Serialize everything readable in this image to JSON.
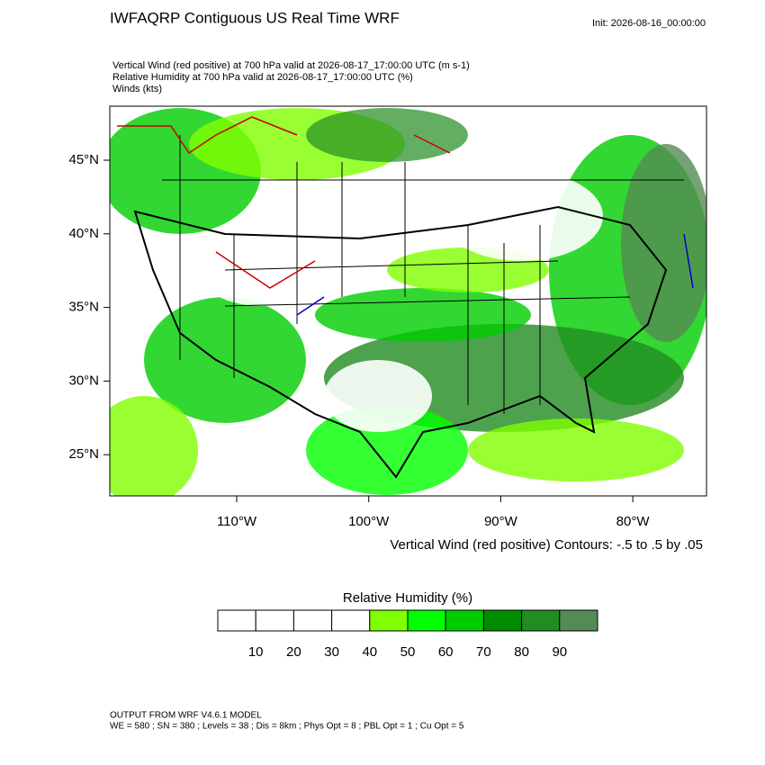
{
  "header": {
    "title": "IWFAQRP Contiguous US Real Time WRF",
    "init": "Init: 2026-08-16_00:00:00"
  },
  "fields": [
    "Vertical Wind (red positive) at 700 hPa valid at 2026-08-17_17:00:00 UTC   (m s-1)",
    "Relative Humidity at 700 hPa valid at 2026-08-17_17:00:00 UTC   (%)",
    "Winds   (kts)"
  ],
  "map": {
    "lon_ticks": [
      {
        "value": -110,
        "label": "110°W"
      },
      {
        "value": -100,
        "label": "100°W"
      },
      {
        "value": -90,
        "label": "90°W"
      },
      {
        "value": -80,
        "label": "80°W"
      }
    ],
    "lat_ticks": [
      {
        "value": 45,
        "label": "45°N"
      },
      {
        "value": 40,
        "label": "40°N"
      },
      {
        "value": 35,
        "label": "35°N"
      },
      {
        "value": 30,
        "label": "30°N"
      },
      {
        "value": 25,
        "label": "25°N"
      }
    ],
    "contour_note": "Vertical Wind (red positive) Contours: -.5 to .5 by .05"
  },
  "colorbar": {
    "title": "Relative Humidity  (%)",
    "colors": [
      "#ffffff",
      "#ffffff",
      "#ffffff",
      "#ffffff",
      "#7fff00",
      "#00ff00",
      "#00cd00",
      "#008b00",
      "#228b22",
      "#548b54"
    ],
    "labels": [
      10,
      20,
      30,
      40,
      50,
      60,
      70,
      80,
      90
    ]
  },
  "footer": {
    "model": "OUTPUT FROM WRF V4.6.1 MODEL",
    "settings": "WE = 580 ; SN = 380 ; Levels = 38 ; Dis = 8km ; Phys Opt = 8 ; PBL Opt = 1 ; Cu Opt = 5"
  }
}
